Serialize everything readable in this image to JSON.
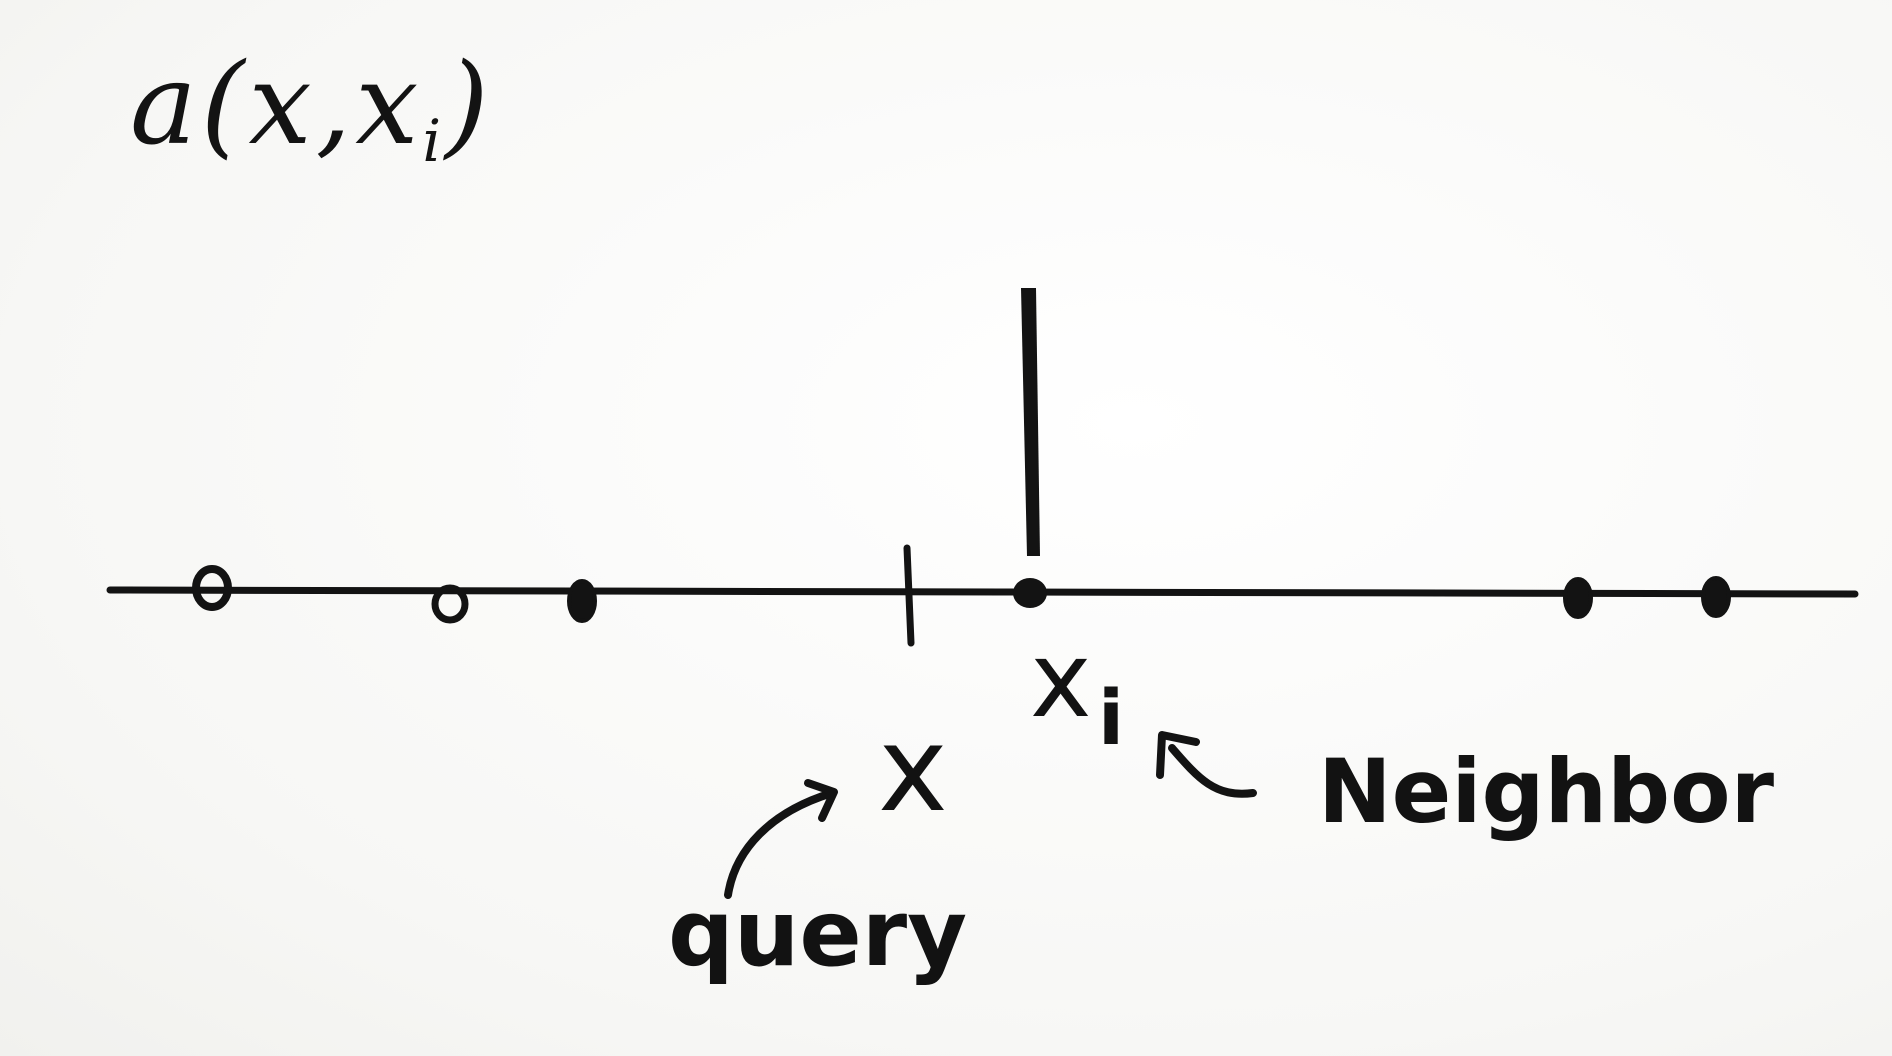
{
  "formula": {
    "fn": "a",
    "open": "(",
    "arg1": "x",
    "sep": ",",
    "arg2": "x",
    "arg2_sub": "i",
    "close": ")"
  },
  "labels": {
    "query_point": "x",
    "query_caption": "query",
    "neighbor_point": "x",
    "neighbor_sub": "i",
    "neighbor_caption": "Neighbor"
  },
  "colors": {
    "ink": "#131313",
    "paper": "#fbfbfa"
  }
}
